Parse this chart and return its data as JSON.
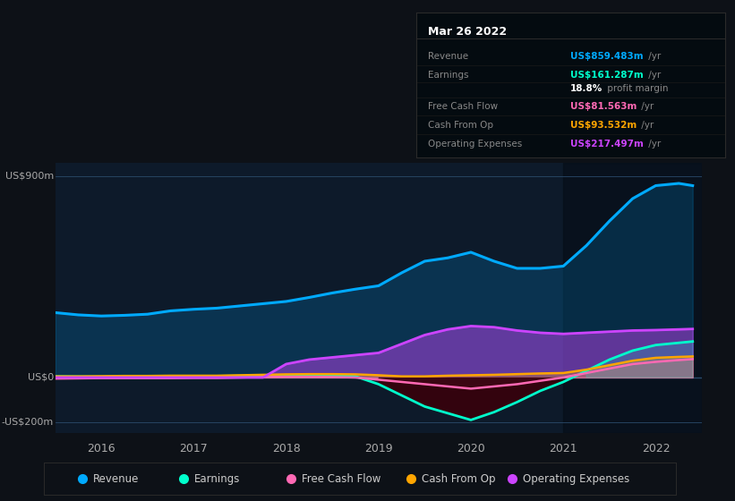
{
  "bg_color": "#0d1117",
  "plot_bg_color": "#0d1a2a",
  "title_date": "Mar 26 2022",
  "info_box_rows": [
    {
      "label": "Revenue",
      "value": "US$859.483m",
      "suffix": " /yr",
      "color": "#00aaff"
    },
    {
      "label": "Earnings",
      "value": "US$161.287m",
      "suffix": " /yr",
      "color": "#00ffcc"
    },
    {
      "label": "",
      "value": "18.8%",
      "suffix": " profit margin",
      "color": "#ffffff"
    },
    {
      "label": "Free Cash Flow",
      "value": "US$81.563m",
      "suffix": " /yr",
      "color": "#ff69b4"
    },
    {
      "label": "Cash From Op",
      "value": "US$93.532m",
      "suffix": " /yr",
      "color": "#ffa500"
    },
    {
      "label": "Operating Expenses",
      "value": "US$217.497m",
      "suffix": " /yr",
      "color": "#cc44ff"
    }
  ],
  "ylabel_top": "US$900m",
  "ylabel_zero": "US$0",
  "ylabel_bottom": "-US$200m",
  "ylim": [
    -250,
    960
  ],
  "xlim": [
    2015.5,
    2022.5
  ],
  "xticks": [
    2016,
    2017,
    2018,
    2019,
    2020,
    2021,
    2022
  ],
  "highlight_x_start": 2021.0,
  "highlight_x_end": 2022.5,
  "series": {
    "revenue": {
      "color": "#00aaff",
      "linewidth": 2.2,
      "x": [
        2015.5,
        2015.75,
        2016.0,
        2016.25,
        2016.5,
        2016.75,
        2017.0,
        2017.25,
        2017.5,
        2017.75,
        2018.0,
        2018.25,
        2018.5,
        2018.75,
        2019.0,
        2019.25,
        2019.5,
        2019.75,
        2020.0,
        2020.25,
        2020.5,
        2020.75,
        2021.0,
        2021.25,
        2021.5,
        2021.75,
        2022.0,
        2022.25,
        2022.4
      ],
      "y": [
        290,
        280,
        275,
        278,
        283,
        298,
        305,
        310,
        320,
        330,
        340,
        358,
        378,
        395,
        410,
        468,
        520,
        535,
        560,
        520,
        488,
        488,
        498,
        590,
        700,
        800,
        858,
        868,
        858
      ]
    },
    "earnings": {
      "color": "#00ffcc",
      "linewidth": 2.0,
      "x": [
        2015.5,
        2015.75,
        2016.0,
        2016.25,
        2016.5,
        2016.75,
        2017.0,
        2017.25,
        2017.5,
        2017.75,
        2018.0,
        2018.25,
        2018.5,
        2018.75,
        2019.0,
        2019.25,
        2019.5,
        2019.75,
        2020.0,
        2020.25,
        2020.5,
        2020.75,
        2021.0,
        2021.25,
        2021.5,
        2021.75,
        2022.0,
        2022.25,
        2022.4
      ],
      "y": [
        5,
        4,
        3,
        4,
        5,
        5,
        5,
        6,
        7,
        7,
        8,
        8,
        8,
        5,
        -30,
        -80,
        -130,
        -160,
        -190,
        -155,
        -110,
        -60,
        -20,
        30,
        80,
        120,
        145,
        155,
        161
      ]
    },
    "free_cash_flow": {
      "color": "#ff69b4",
      "linewidth": 1.8,
      "x": [
        2015.5,
        2015.75,
        2016.0,
        2016.25,
        2016.5,
        2016.75,
        2017.0,
        2017.25,
        2017.5,
        2017.75,
        2018.0,
        2018.25,
        2018.5,
        2018.75,
        2019.0,
        2019.25,
        2019.5,
        2019.75,
        2020.0,
        2020.25,
        2020.5,
        2020.75,
        2021.0,
        2021.25,
        2021.5,
        2021.75,
        2022.0,
        2022.25,
        2022.4
      ],
      "y": [
        -5,
        -4,
        -3,
        -3,
        -3,
        -3,
        -2,
        -2,
        0,
        2,
        3,
        3,
        2,
        0,
        -10,
        -20,
        -30,
        -40,
        -50,
        -40,
        -30,
        -15,
        0,
        20,
        40,
        60,
        70,
        78,
        82
      ]
    },
    "cash_from_op": {
      "color": "#ffa500",
      "linewidth": 1.8,
      "x": [
        2015.5,
        2015.75,
        2016.0,
        2016.25,
        2016.5,
        2016.75,
        2017.0,
        2017.25,
        2017.5,
        2017.75,
        2018.0,
        2018.25,
        2018.5,
        2018.75,
        2019.0,
        2019.25,
        2019.5,
        2019.75,
        2020.0,
        2020.25,
        2020.5,
        2020.75,
        2021.0,
        2021.25,
        2021.5,
        2021.75,
        2022.0,
        2022.25,
        2022.4
      ],
      "y": [
        5,
        5,
        6,
        7,
        7,
        8,
        8,
        8,
        10,
        12,
        14,
        15,
        15,
        14,
        10,
        5,
        5,
        8,
        10,
        12,
        15,
        18,
        20,
        35,
        55,
        75,
        88,
        92,
        94
      ]
    },
    "operating_expenses": {
      "color": "#cc44ff",
      "linewidth": 2.0,
      "x": [
        2015.5,
        2015.75,
        2016.0,
        2016.25,
        2016.5,
        2016.75,
        2017.0,
        2017.25,
        2017.5,
        2017.75,
        2018.0,
        2018.25,
        2018.5,
        2018.75,
        2019.0,
        2019.25,
        2019.5,
        2019.75,
        2020.0,
        2020.25,
        2020.5,
        2020.75,
        2021.0,
        2021.25,
        2021.5,
        2021.75,
        2022.0,
        2022.25,
        2022.4
      ],
      "y": [
        0,
        0,
        0,
        0,
        0,
        0,
        0,
        0,
        0,
        0,
        60,
        80,
        90,
        100,
        110,
        150,
        190,
        215,
        230,
        225,
        210,
        200,
        195,
        200,
        205,
        210,
        212,
        215,
        217
      ]
    }
  },
  "legend": [
    {
      "label": "Revenue",
      "color": "#00aaff"
    },
    {
      "label": "Earnings",
      "color": "#00ffcc"
    },
    {
      "label": "Free Cash Flow",
      "color": "#ff69b4"
    },
    {
      "label": "Cash From Op",
      "color": "#ffa500"
    },
    {
      "label": "Operating Expenses",
      "color": "#cc44ff"
    }
  ]
}
